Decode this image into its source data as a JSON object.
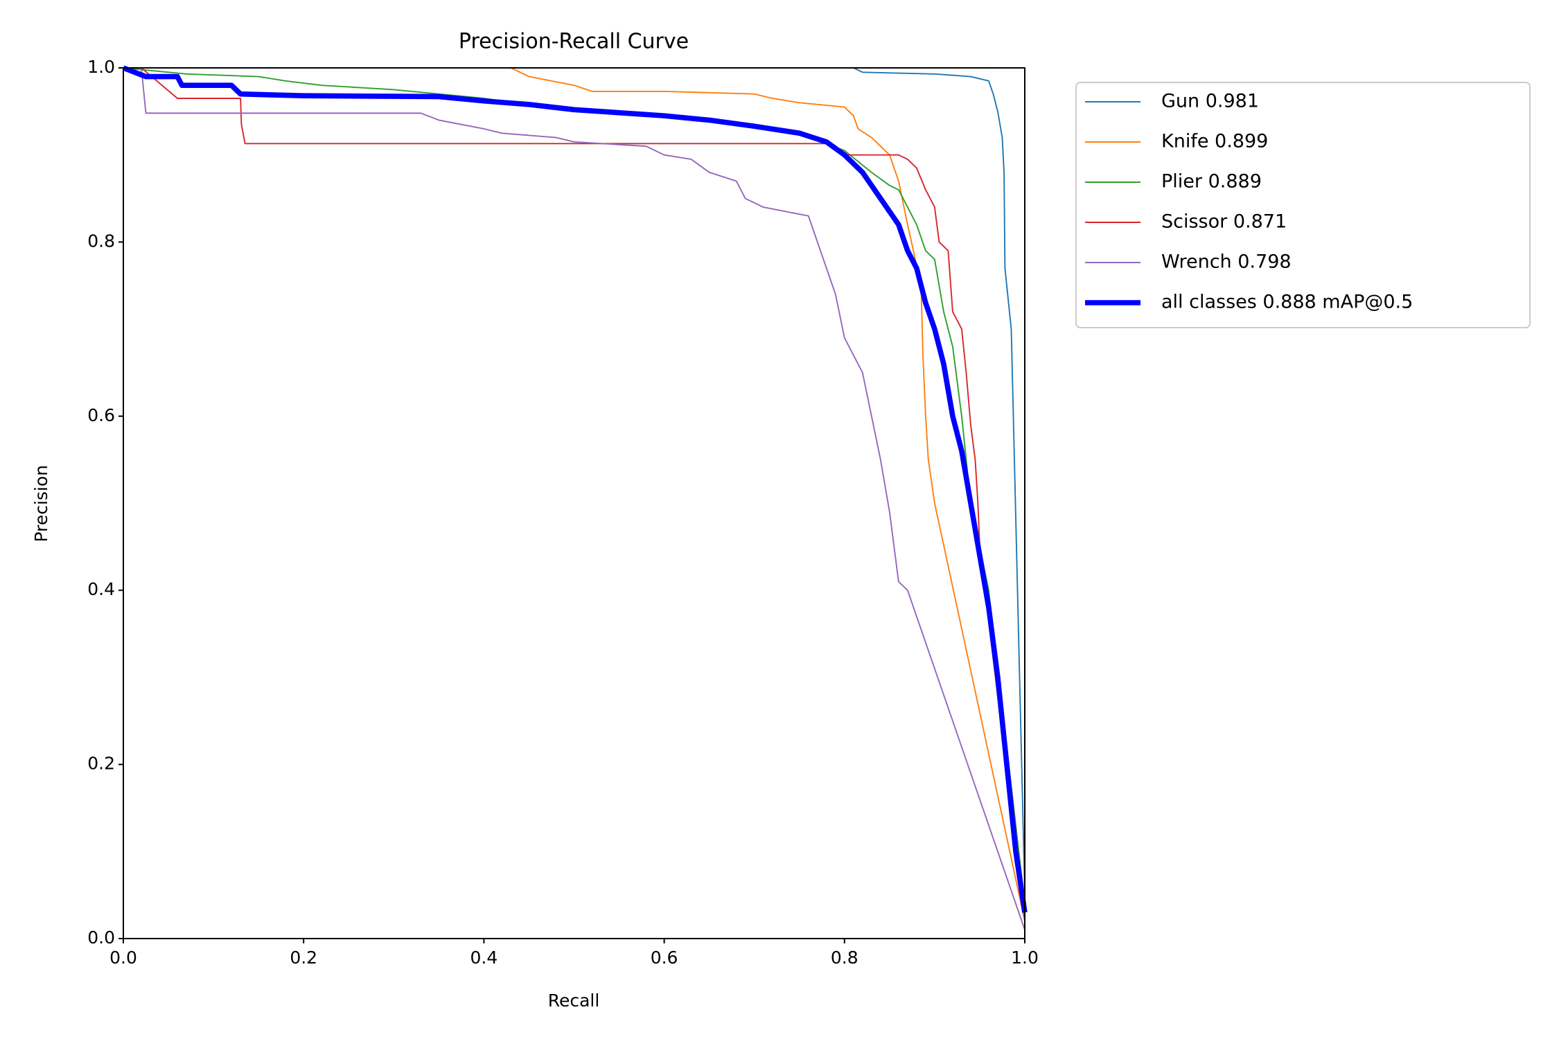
{
  "chart_data": {
    "type": "line",
    "title": "Precision-Recall Curve",
    "x_label": "Recall",
    "y_label": "Precision",
    "xlim": [
      0,
      1
    ],
    "ylim": [
      0,
      1
    ],
    "xticks": [
      {
        "value": 0,
        "label": "0.0"
      },
      0.2,
      0.4,
      0.6,
      0.8,
      {
        "value": 1,
        "label": "1.0"
      }
    ],
    "yticks": [
      {
        "value": 0,
        "label": "0.0"
      },
      0.2,
      0.4,
      0.6,
      0.8,
      {
        "value": 1,
        "label": "1.0"
      }
    ],
    "grid": false,
    "legend": "outside upper right",
    "series": [
      {
        "name": "Gun 0.981",
        "color": "#1f77b4",
        "linewidth": 1,
        "x": [
          0,
          0.81,
          0.82,
          0.9,
          0.94,
          0.96,
          0.965,
          0.97,
          0.975,
          0.977,
          0.978,
          0.985,
          1.0
        ],
        "values": [
          1,
          1,
          0.995,
          0.993,
          0.99,
          0.985,
          0.97,
          0.95,
          0.92,
          0.88,
          0.77,
          0.7,
          0.05
        ]
      },
      {
        "name": "Knife 0.899",
        "color": "#ff7f0e",
        "linewidth": 1,
        "x": [
          0,
          0.43,
          0.45,
          0.5,
          0.52,
          0.6,
          0.7,
          0.72,
          0.75,
          0.8,
          0.81,
          0.815,
          0.83,
          0.85,
          0.86,
          0.87,
          0.885,
          0.887,
          0.89,
          0.893,
          0.9,
          1.0
        ],
        "values": [
          1,
          1,
          0.99,
          0.98,
          0.973,
          0.973,
          0.97,
          0.965,
          0.96,
          0.955,
          0.945,
          0.93,
          0.92,
          0.9,
          0.87,
          0.82,
          0.75,
          0.67,
          0.6,
          0.55,
          0.5,
          0.02
        ]
      },
      {
        "name": "Plier 0.889",
        "color": "#2ca02c",
        "linewidth": 1,
        "x": [
          0,
          0.07,
          0.15,
          0.18,
          0.22,
          0.3,
          0.4,
          0.5,
          0.6,
          0.7,
          0.75,
          0.8,
          0.83,
          0.85,
          0.86,
          0.87,
          0.88,
          0.89,
          0.9,
          0.905,
          0.91,
          0.92,
          0.93,
          0.94,
          0.96,
          1.0
        ],
        "values": [
          1,
          0.993,
          0.99,
          0.985,
          0.98,
          0.975,
          0.965,
          0.95,
          0.945,
          0.935,
          0.925,
          0.905,
          0.88,
          0.865,
          0.86,
          0.84,
          0.82,
          0.79,
          0.78,
          0.75,
          0.72,
          0.68,
          0.6,
          0.5,
          0.4,
          0.04
        ]
      },
      {
        "name": "Scissor 0.871",
        "color": "#d62728",
        "linewidth": 1,
        "x": [
          0,
          0.02,
          0.06,
          0.13,
          0.131,
          0.135,
          0.4,
          0.78,
          0.8,
          0.86,
          0.87,
          0.88,
          0.89,
          0.9,
          0.905,
          0.915,
          0.92,
          0.93,
          0.935,
          0.94,
          0.945,
          0.948,
          0.95,
          1.0
        ],
        "values": [
          1,
          1,
          0.965,
          0.965,
          0.935,
          0.913,
          0.913,
          0.913,
          0.9,
          0.9,
          0.895,
          0.885,
          0.86,
          0.84,
          0.8,
          0.79,
          0.72,
          0.7,
          0.65,
          0.59,
          0.55,
          0.5,
          0.45,
          0.02
        ]
      },
      {
        "name": "Wrench 0.798",
        "color": "#9467bd",
        "linewidth": 1,
        "x": [
          0,
          0.02,
          0.025,
          0.33,
          0.35,
          0.4,
          0.42,
          0.48,
          0.5,
          0.58,
          0.6,
          0.63,
          0.65,
          0.68,
          0.69,
          0.71,
          0.76,
          0.77,
          0.78,
          0.79,
          0.8,
          0.82,
          0.83,
          0.84,
          0.85,
          0.855,
          0.86,
          0.87,
          1.0
        ],
        "values": [
          1,
          1,
          0.948,
          0.948,
          0.94,
          0.93,
          0.925,
          0.92,
          0.915,
          0.91,
          0.9,
          0.895,
          0.88,
          0.87,
          0.85,
          0.84,
          0.83,
          0.8,
          0.77,
          0.74,
          0.69,
          0.65,
          0.6,
          0.55,
          0.49,
          0.45,
          0.41,
          0.4,
          0.01
        ]
      },
      {
        "name": "all classes 0.888 mAP@0.5",
        "color": "#0000ff",
        "linewidth": 4,
        "x": [
          0,
          0.025,
          0.06,
          0.065,
          0.12,
          0.13,
          0.2,
          0.35,
          0.4,
          0.45,
          0.5,
          0.6,
          0.65,
          0.7,
          0.75,
          0.78,
          0.8,
          0.82,
          0.84,
          0.86,
          0.87,
          0.88,
          0.89,
          0.9,
          0.91,
          0.92,
          0.93,
          0.94,
          0.95,
          0.96,
          0.97,
          0.98,
          0.99,
          1.0
        ],
        "values": [
          1,
          0.99,
          0.99,
          0.98,
          0.98,
          0.97,
          0.968,
          0.967,
          0.962,
          0.958,
          0.952,
          0.945,
          0.94,
          0.933,
          0.925,
          0.915,
          0.9,
          0.88,
          0.85,
          0.82,
          0.79,
          0.77,
          0.73,
          0.7,
          0.66,
          0.6,
          0.56,
          0.5,
          0.44,
          0.38,
          0.3,
          0.2,
          0.1,
          0.03
        ]
      }
    ]
  }
}
